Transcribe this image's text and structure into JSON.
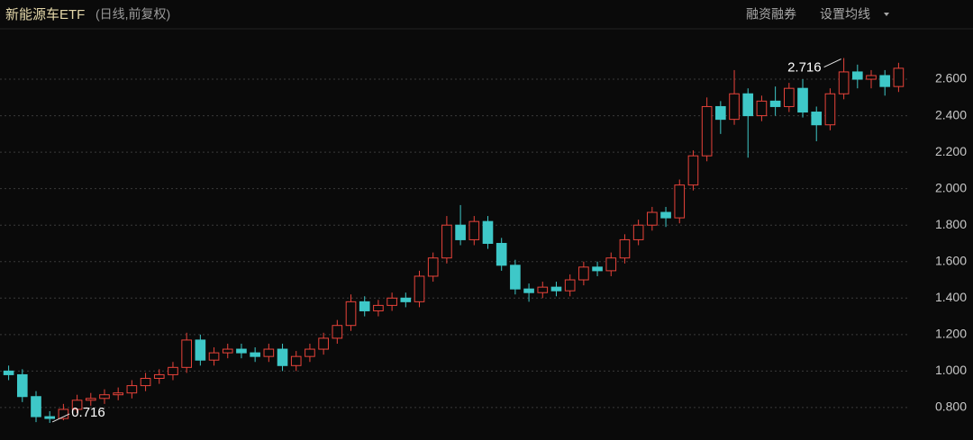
{
  "chart_data": {
    "type": "candlestick",
    "title": "新能源车ETF",
    "subtitle": "(日线,前复权)",
    "buttons": [
      "融资融券",
      "设置均线"
    ],
    "up_color": "#e8433a",
    "down_color": "#3ec8c8",
    "grid": true,
    "ylim": [
      0.622,
      2.763
    ],
    "yticks": [
      {
        "value": 0.8,
        "label": "0.800"
      },
      {
        "value": 1.0,
        "label": "1.000"
      },
      {
        "value": 1.2,
        "label": "1.200"
      },
      {
        "value": 1.4,
        "label": "1.400"
      },
      {
        "value": 1.6,
        "label": "1.600"
      },
      {
        "value": 1.8,
        "label": "1.800"
      },
      {
        "value": 2.0,
        "label": "2.000"
      },
      {
        "value": 2.2,
        "label": "2.200"
      },
      {
        "value": 2.4,
        "label": "2.400"
      },
      {
        "value": 2.6,
        "label": "2.600"
      }
    ],
    "annotations": [
      "2.716",
      "0.716"
    ],
    "open": [
      1.0,
      0.98,
      0.86,
      0.75,
      0.74,
      0.79,
      0.84,
      0.85,
      0.87,
      0.88,
      0.92,
      0.96,
      0.98,
      1.02,
      1.17,
      1.06,
      1.1,
      1.12,
      1.1,
      1.08,
      1.12,
      1.03,
      1.08,
      1.12,
      1.18,
      1.25,
      1.38,
      1.33,
      1.36,
      1.4,
      1.38,
      1.52,
      1.62,
      1.8,
      1.72,
      1.82,
      1.7,
      1.58,
      1.45,
      1.43,
      1.46,
      1.44,
      1.5,
      1.57,
      1.55,
      1.62,
      1.72,
      1.8,
      1.87,
      1.84,
      2.02,
      2.18,
      2.45,
      2.38,
      2.52,
      2.4,
      2.48,
      2.45,
      2.55,
      2.42,
      2.35,
      2.52,
      2.64,
      2.6,
      2.62,
      2.56
    ],
    "high": [
      1.03,
      1.01,
      0.89,
      0.78,
      0.82,
      0.87,
      0.88,
      0.9,
      0.91,
      0.95,
      0.99,
      1.01,
      1.05,
      1.21,
      1.2,
      1.13,
      1.15,
      1.15,
      1.13,
      1.15,
      1.15,
      1.11,
      1.15,
      1.21,
      1.28,
      1.42,
      1.41,
      1.39,
      1.43,
      1.43,
      1.55,
      1.65,
      1.85,
      1.91,
      1.85,
      1.85,
      1.73,
      1.61,
      1.48,
      1.49,
      1.49,
      1.53,
      1.6,
      1.6,
      1.65,
      1.75,
      1.83,
      1.9,
      1.9,
      2.05,
      2.21,
      2.5,
      2.48,
      2.65,
      2.55,
      2.51,
      2.56,
      2.58,
      2.6,
      2.45,
      2.55,
      2.716,
      2.68,
      2.65,
      2.65,
      2.69
    ],
    "low": [
      0.95,
      0.83,
      0.72,
      0.716,
      0.73,
      0.77,
      0.81,
      0.82,
      0.84,
      0.85,
      0.89,
      0.93,
      0.95,
      0.99,
      1.03,
      1.03,
      1.07,
      1.07,
      1.05,
      1.05,
      1.0,
      1.0,
      1.05,
      1.09,
      1.15,
      1.22,
      1.3,
      1.3,
      1.33,
      1.35,
      1.35,
      1.49,
      1.59,
      1.69,
      1.69,
      1.67,
      1.55,
      1.42,
      1.38,
      1.4,
      1.41,
      1.41,
      1.47,
      1.52,
      1.52,
      1.59,
      1.69,
      1.77,
      1.79,
      1.81,
      1.99,
      2.15,
      2.3,
      2.35,
      2.17,
      2.37,
      2.4,
      2.42,
      2.39,
      2.26,
      2.32,
      2.49,
      2.55,
      2.55,
      2.51,
      2.53
    ],
    "close": [
      0.98,
      0.86,
      0.75,
      0.74,
      0.79,
      0.84,
      0.85,
      0.87,
      0.88,
      0.92,
      0.96,
      0.98,
      1.02,
      1.17,
      1.06,
      1.1,
      1.12,
      1.1,
      1.08,
      1.12,
      1.03,
      1.08,
      1.12,
      1.18,
      1.25,
      1.38,
      1.33,
      1.36,
      1.4,
      1.38,
      1.52,
      1.62,
      1.8,
      1.72,
      1.82,
      1.7,
      1.58,
      1.45,
      1.43,
      1.46,
      1.44,
      1.5,
      1.57,
      1.55,
      1.62,
      1.72,
      1.8,
      1.87,
      1.84,
      2.02,
      2.18,
      2.45,
      2.38,
      2.52,
      2.4,
      2.48,
      2.45,
      2.55,
      2.42,
      2.35,
      2.52,
      2.64,
      2.6,
      2.62,
      2.56,
      2.66
    ]
  }
}
